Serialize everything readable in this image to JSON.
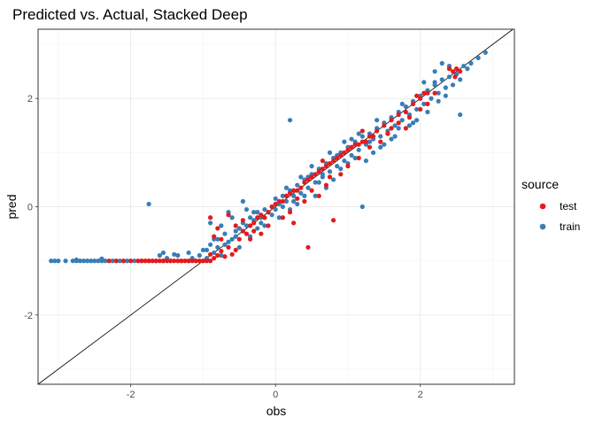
{
  "chart_data": {
    "type": "scatter",
    "title": "Predicted vs. Actual, Stacked Deep",
    "xlabel": "obs",
    "ylabel": "pred",
    "xlim": [
      -3.28,
      3.3
    ],
    "ylim": [
      -3.28,
      3.28
    ],
    "xticks": [
      -2,
      0,
      2
    ],
    "yticks": [
      -2,
      0,
      2
    ],
    "xtick_labels": [
      "-2",
      "0",
      "2"
    ],
    "ytick_labels": [
      "-2",
      "0",
      "2"
    ],
    "grid": true,
    "reference_line": {
      "slope": 1,
      "intercept": 0
    },
    "legend": {
      "title": "source",
      "position": "right"
    },
    "series": [
      {
        "name": "test",
        "color": "#E41A1C",
        "points": [
          [
            -2.3,
            -1.0
          ],
          [
            -2.2,
            -1.0
          ],
          [
            -2.1,
            -1.0
          ],
          [
            -2.0,
            -1.0
          ],
          [
            -1.9,
            -1.0
          ],
          [
            -1.85,
            -1.0
          ],
          [
            -1.8,
            -1.0
          ],
          [
            -1.75,
            -1.0
          ],
          [
            -1.7,
            -1.0
          ],
          [
            -1.65,
            -1.0
          ],
          [
            -1.6,
            -1.0
          ],
          [
            -1.55,
            -1.0
          ],
          [
            -1.5,
            -1.0
          ],
          [
            -1.45,
            -1.0
          ],
          [
            -1.4,
            -1.0
          ],
          [
            -1.35,
            -1.0
          ],
          [
            -1.3,
            -1.0
          ],
          [
            -1.25,
            -1.0
          ],
          [
            -1.2,
            -1.0
          ],
          [
            -1.15,
            -1.0
          ],
          [
            -1.1,
            -1.0
          ],
          [
            -1.05,
            -1.0
          ],
          [
            -1.0,
            -1.0
          ],
          [
            -0.95,
            -1.0
          ],
          [
            -0.9,
            -1.0
          ],
          [
            -0.9,
            -0.88
          ],
          [
            -0.85,
            -0.95
          ],
          [
            -0.8,
            -0.9
          ],
          [
            -0.75,
            -0.82
          ],
          [
            -0.7,
            -0.92
          ],
          [
            -0.65,
            -0.75
          ],
          [
            -0.6,
            -0.88
          ],
          [
            -0.55,
            -0.8
          ],
          [
            -0.5,
            -0.6
          ],
          [
            -0.45,
            -0.45
          ],
          [
            -0.4,
            -0.5
          ],
          [
            -0.35,
            -0.35
          ],
          [
            -0.3,
            -0.3
          ],
          [
            -0.25,
            -0.2
          ],
          [
            -0.2,
            -0.15
          ],
          [
            -0.15,
            -0.2
          ],
          [
            -0.1,
            -0.1
          ],
          [
            -0.05,
            0.0
          ],
          [
            0.0,
            0.05
          ],
          [
            0.05,
            0.1
          ],
          [
            0.1,
            0.1
          ],
          [
            0.15,
            0.2
          ],
          [
            0.2,
            0.25
          ],
          [
            0.25,
            0.3
          ],
          [
            0.3,
            0.3
          ],
          [
            0.35,
            0.35
          ],
          [
            0.4,
            0.45
          ],
          [
            0.45,
            0.5
          ],
          [
            0.5,
            0.55
          ],
          [
            0.55,
            0.6
          ],
          [
            0.6,
            0.65
          ],
          [
            0.65,
            0.7
          ],
          [
            0.7,
            0.75
          ],
          [
            0.75,
            0.8
          ],
          [
            0.8,
            0.85
          ],
          [
            0.85,
            0.9
          ],
          [
            0.9,
            0.95
          ],
          [
            0.95,
            1.0
          ],
          [
            1.0,
            1.05
          ],
          [
            1.05,
            1.1
          ],
          [
            1.1,
            1.15
          ],
          [
            1.2,
            1.2
          ],
          [
            1.3,
            1.3
          ],
          [
            1.4,
            1.4
          ],
          [
            1.5,
            1.5
          ],
          [
            1.6,
            1.6
          ],
          [
            1.7,
            1.7
          ],
          [
            1.8,
            1.75
          ],
          [
            1.9,
            1.9
          ],
          [
            2.0,
            2.0
          ],
          [
            2.1,
            2.1
          ],
          [
            -0.9,
            -0.2
          ],
          [
            -0.85,
            -0.55
          ],
          [
            -0.8,
            -0.4
          ],
          [
            -0.75,
            -0.6
          ],
          [
            -0.65,
            -0.15
          ],
          [
            -0.55,
            -0.35
          ],
          [
            -0.45,
            -0.25
          ],
          [
            -0.35,
            -0.6
          ],
          [
            -0.3,
            -0.45
          ],
          [
            -0.2,
            -0.5
          ],
          [
            -0.1,
            -0.35
          ],
          [
            0.1,
            -0.2
          ],
          [
            0.2,
            -0.1
          ],
          [
            0.25,
            -0.3
          ],
          [
            0.3,
            0.15
          ],
          [
            0.4,
            0.1
          ],
          [
            0.45,
            -0.75
          ],
          [
            0.5,
            0.3
          ],
          [
            0.6,
            0.2
          ],
          [
            0.65,
            0.85
          ],
          [
            0.7,
            0.4
          ],
          [
            0.75,
            0.55
          ],
          [
            0.8,
            -0.25
          ],
          [
            0.9,
            0.6
          ],
          [
            1.0,
            0.75
          ],
          [
            1.15,
            0.9
          ],
          [
            1.2,
            1.4
          ],
          [
            1.3,
            1.1
          ],
          [
            1.45,
            1.2
          ],
          [
            1.55,
            1.35
          ],
          [
            1.7,
            1.55
          ],
          [
            1.8,
            1.45
          ],
          [
            1.95,
            2.05
          ],
          [
            2.0,
            1.8
          ],
          [
            2.1,
            1.9
          ],
          [
            2.2,
            2.1
          ],
          [
            1.15,
            1.15
          ],
          [
            1.25,
            1.2
          ],
          [
            1.35,
            1.3
          ],
          [
            1.6,
            1.45
          ],
          [
            1.85,
            1.65
          ],
          [
            2.05,
            2.1
          ],
          [
            2.4,
            2.55
          ],
          [
            2.45,
            2.5
          ],
          [
            2.5,
            2.55
          ],
          [
            2.55,
            2.5
          ],
          [
            2.48,
            2.4
          ]
        ]
      },
      {
        "name": "train",
        "color": "#377EB8",
        "points": [
          [
            -3.1,
            -1.0
          ],
          [
            -3.05,
            -1.0
          ],
          [
            -3.0,
            -1.0
          ],
          [
            -2.9,
            -1.0
          ],
          [
            -2.8,
            -1.0
          ],
          [
            -2.75,
            -1.0
          ],
          [
            -2.7,
            -1.0
          ],
          [
            -2.65,
            -1.0
          ],
          [
            -2.6,
            -1.0
          ],
          [
            -2.55,
            -1.0
          ],
          [
            -2.5,
            -1.0
          ],
          [
            -2.45,
            -1.0
          ],
          [
            -2.4,
            -1.0
          ],
          [
            -2.35,
            -1.0
          ],
          [
            -2.25,
            -1.0
          ],
          [
            -2.15,
            -1.0
          ],
          [
            -2.05,
            -1.0
          ],
          [
            -1.95,
            -1.0
          ],
          [
            -1.85,
            -1.0
          ],
          [
            -1.75,
            -1.0
          ],
          [
            -1.65,
            -1.0
          ],
          [
            -1.55,
            -1.0
          ],
          [
            -1.45,
            -1.0
          ],
          [
            -1.3,
            -1.0
          ],
          [
            -1.2,
            -1.0
          ],
          [
            -1.1,
            -1.0
          ],
          [
            -1.0,
            -1.0
          ],
          [
            -2.75,
            -0.98
          ],
          [
            -2.4,
            -0.96
          ],
          [
            -1.5,
            -0.95
          ],
          [
            -1.6,
            -0.9
          ],
          [
            -1.55,
            -0.85
          ],
          [
            -1.4,
            -0.88
          ],
          [
            -1.35,
            -0.9
          ],
          [
            -1.2,
            -0.85
          ],
          [
            -1.15,
            -0.95
          ],
          [
            -1.05,
            -0.9
          ],
          [
            -1.0,
            -0.8
          ],
          [
            -1.75,
            0.05
          ],
          [
            0.2,
            1.6
          ],
          [
            -0.45,
            0.1
          ],
          [
            -0.65,
            -0.1
          ],
          [
            -0.75,
            -0.35
          ],
          [
            -0.85,
            -0.6
          ],
          [
            -0.95,
            -0.95
          ],
          [
            -0.9,
            -0.7
          ],
          [
            -0.8,
            -0.75
          ],
          [
            -0.7,
            -0.7
          ],
          [
            -0.6,
            -0.6
          ],
          [
            -0.55,
            -0.55
          ],
          [
            -0.5,
            -0.4
          ],
          [
            -0.45,
            -0.45
          ],
          [
            -0.4,
            -0.35
          ],
          [
            -0.35,
            -0.2
          ],
          [
            -0.3,
            -0.25
          ],
          [
            -0.25,
            -0.1
          ],
          [
            -0.2,
            -0.2
          ],
          [
            -0.15,
            -0.05
          ],
          [
            -0.1,
            -0.1
          ],
          [
            -0.05,
            0.0
          ],
          [
            0.0,
            -0.05
          ],
          [
            0.05,
            0.05
          ],
          [
            0.1,
            0.2
          ],
          [
            0.15,
            0.1
          ],
          [
            0.2,
            0.3
          ],
          [
            0.25,
            0.2
          ],
          [
            0.3,
            0.4
          ],
          [
            0.35,
            0.25
          ],
          [
            0.4,
            0.5
          ],
          [
            0.45,
            0.35
          ],
          [
            0.5,
            0.6
          ],
          [
            0.55,
            0.45
          ],
          [
            0.6,
            0.7
          ],
          [
            0.65,
            0.55
          ],
          [
            0.7,
            0.8
          ],
          [
            0.75,
            0.65
          ],
          [
            0.8,
            0.9
          ],
          [
            0.85,
            0.75
          ],
          [
            0.9,
            1.0
          ],
          [
            0.95,
            0.85
          ],
          [
            1.0,
            1.1
          ],
          [
            1.05,
            0.95
          ],
          [
            1.1,
            1.2
          ],
          [
            1.15,
            1.05
          ],
          [
            1.2,
            1.3
          ],
          [
            1.25,
            1.15
          ],
          [
            1.3,
            1.35
          ],
          [
            1.35,
            1.25
          ],
          [
            1.4,
            1.45
          ],
          [
            1.45,
            1.3
          ],
          [
            1.5,
            1.55
          ],
          [
            1.55,
            1.4
          ],
          [
            1.6,
            1.65
          ],
          [
            1.65,
            1.5
          ],
          [
            1.7,
            1.75
          ],
          [
            1.75,
            1.6
          ],
          [
            1.8,
            1.85
          ],
          [
            1.85,
            1.7
          ],
          [
            1.9,
            1.95
          ],
          [
            1.95,
            1.8
          ],
          [
            2.0,
            2.05
          ],
          [
            2.05,
            1.9
          ],
          [
            2.1,
            2.15
          ],
          [
            2.15,
            2.0
          ],
          [
            2.2,
            2.25
          ],
          [
            2.25,
            2.1
          ],
          [
            2.3,
            2.35
          ],
          [
            2.35,
            2.2
          ],
          [
            2.4,
            2.4
          ],
          [
            2.5,
            2.45
          ],
          [
            2.6,
            2.6
          ],
          [
            2.7,
            2.65
          ],
          [
            2.8,
            2.75
          ],
          [
            2.9,
            2.85
          ],
          [
            2.55,
            1.7
          ],
          [
            1.2,
            0.0
          ],
          [
            2.2,
            2.5
          ],
          [
            2.3,
            2.65
          ],
          [
            -0.9,
            -0.3
          ],
          [
            -0.85,
            -0.85
          ],
          [
            -0.7,
            -0.5
          ],
          [
            -0.6,
            -0.2
          ],
          [
            -0.5,
            -0.75
          ],
          [
            -0.4,
            -0.05
          ],
          [
            -0.35,
            -0.55
          ],
          [
            -0.25,
            -0.4
          ],
          [
            -0.15,
            -0.35
          ],
          [
            0.0,
            0.15
          ],
          [
            0.05,
            -0.2
          ],
          [
            0.15,
            0.35
          ],
          [
            0.2,
            -0.05
          ],
          [
            0.3,
            0.05
          ],
          [
            0.35,
            0.55
          ],
          [
            0.4,
            0.2
          ],
          [
            0.5,
            0.75
          ],
          [
            0.55,
            0.2
          ],
          [
            0.6,
            0.45
          ],
          [
            0.7,
            0.35
          ],
          [
            0.75,
            1.0
          ],
          [
            0.8,
            0.5
          ],
          [
            0.9,
            0.7
          ],
          [
            0.95,
            1.2
          ],
          [
            1.0,
            0.8
          ],
          [
            1.1,
            0.9
          ],
          [
            1.15,
            1.35
          ],
          [
            1.25,
            0.85
          ],
          [
            1.35,
            1.0
          ],
          [
            1.4,
            1.6
          ],
          [
            1.5,
            1.15
          ],
          [
            1.6,
            1.25
          ],
          [
            1.7,
            1.45
          ],
          [
            1.75,
            1.9
          ],
          [
            1.85,
            1.5
          ],
          [
            1.95,
            1.6
          ],
          [
            2.05,
            2.3
          ],
          [
            2.1,
            1.75
          ],
          [
            2.25,
            1.95
          ],
          [
            2.35,
            2.05
          ],
          [
            2.45,
            2.25
          ],
          [
            2.55,
            2.35
          ],
          [
            2.65,
            2.55
          ],
          [
            2.4,
            2.6
          ],
          [
            2.2,
            2.3
          ],
          [
            1.9,
            1.55
          ],
          [
            1.65,
            1.3
          ],
          [
            1.45,
            1.1
          ],
          [
            1.3,
            1.2
          ],
          [
            1.05,
            1.25
          ],
          [
            0.85,
            0.95
          ],
          [
            0.65,
            0.6
          ],
          [
            0.45,
            0.55
          ],
          [
            0.25,
            0.1
          ],
          [
            0.1,
            0.0
          ],
          [
            -0.05,
            -0.15
          ],
          [
            -0.2,
            -0.3
          ],
          [
            -0.3,
            -0.1
          ],
          [
            -0.45,
            -0.3
          ],
          [
            -0.55,
            -0.45
          ],
          [
            -0.65,
            -0.65
          ],
          [
            -0.75,
            -0.9
          ],
          [
            -0.8,
            -0.6
          ],
          [
            -0.95,
            -0.8
          ]
        ]
      }
    ]
  }
}
